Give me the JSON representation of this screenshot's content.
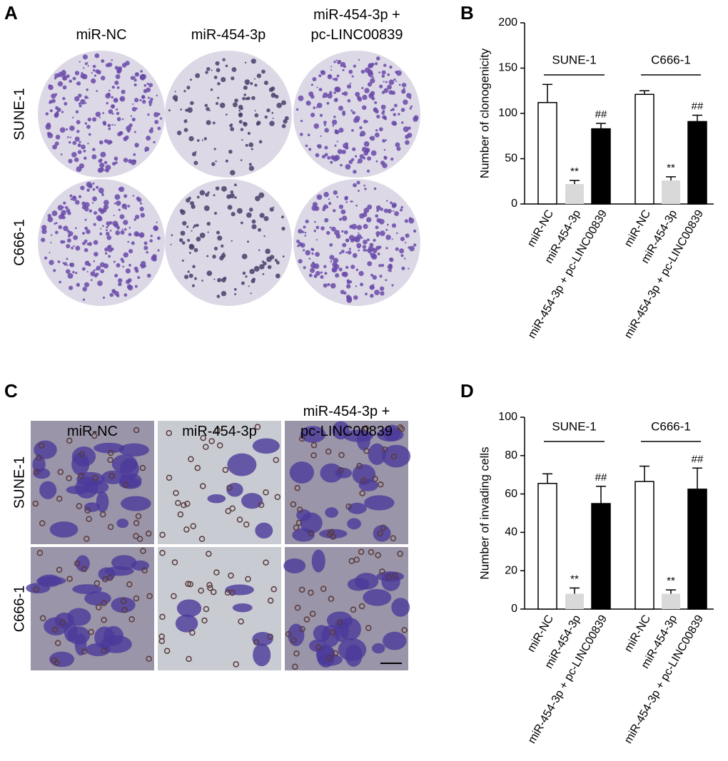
{
  "panels": {
    "a": "A",
    "b": "B",
    "c": "C",
    "d": "D"
  },
  "colony_assay": {
    "columns": [
      "miR-NC",
      "miR-454-3p",
      "miR-454-3p +\npc-LINC00839"
    ],
    "rows": [
      "SUNE-1",
      "C666-1"
    ]
  },
  "invasion_assay": {
    "columns": [
      "miR-NC",
      "miR-454-3p",
      "miR-454-3p +\npc-LINC00839"
    ],
    "rows": [
      "SUNE-1",
      "C666-1"
    ]
  },
  "chart_data": [
    {
      "type": "bar",
      "y_label": "Number of clonogenicity",
      "categories": [
        "miR-NC",
        "miR-454-3p",
        "miR-454-3p + pc-LINC00839",
        "miR-NC",
        "miR-454-3p",
        "miR-454-3p + pc-LINC00839"
      ],
      "groups": [
        "SUNE-1",
        "C666-1"
      ],
      "values": [
        112,
        22,
        83,
        121,
        26,
        91
      ],
      "errors": [
        20,
        4,
        6,
        4,
        4,
        7
      ],
      "colors": [
        "#ffffff",
        "#d9d9d9",
        "#000000",
        "#ffffff",
        "#d9d9d9",
        "#000000"
      ],
      "annotations": [
        null,
        "**",
        "##",
        null,
        "**",
        "##"
      ],
      "ylim": [
        0,
        200
      ],
      "yticks": [
        0,
        50,
        100,
        150,
        200
      ]
    },
    {
      "type": "bar",
      "y_label": "Number of invading cells",
      "categories": [
        "miR-NC",
        "miR-454-3p",
        "miR-454-3p + pc-LINC00839",
        "miR-NC",
        "miR-454-3p",
        "miR-454-3p + pc-LINC00839"
      ],
      "groups": [
        "SUNE-1",
        "C666-1"
      ],
      "values": [
        65.5,
        8,
        55,
        66.5,
        8,
        62.5
      ],
      "errors": [
        5,
        3,
        9,
        8,
        2,
        11
      ],
      "colors": [
        "#ffffff",
        "#d9d9d9",
        "#000000",
        "#ffffff",
        "#d9d9d9",
        "#000000"
      ],
      "annotations": [
        null,
        "**",
        "##",
        null,
        "**",
        "##"
      ],
      "ylim": [
        0,
        100
      ],
      "yticks": [
        0,
        20,
        40,
        60,
        80,
        100
      ]
    }
  ]
}
